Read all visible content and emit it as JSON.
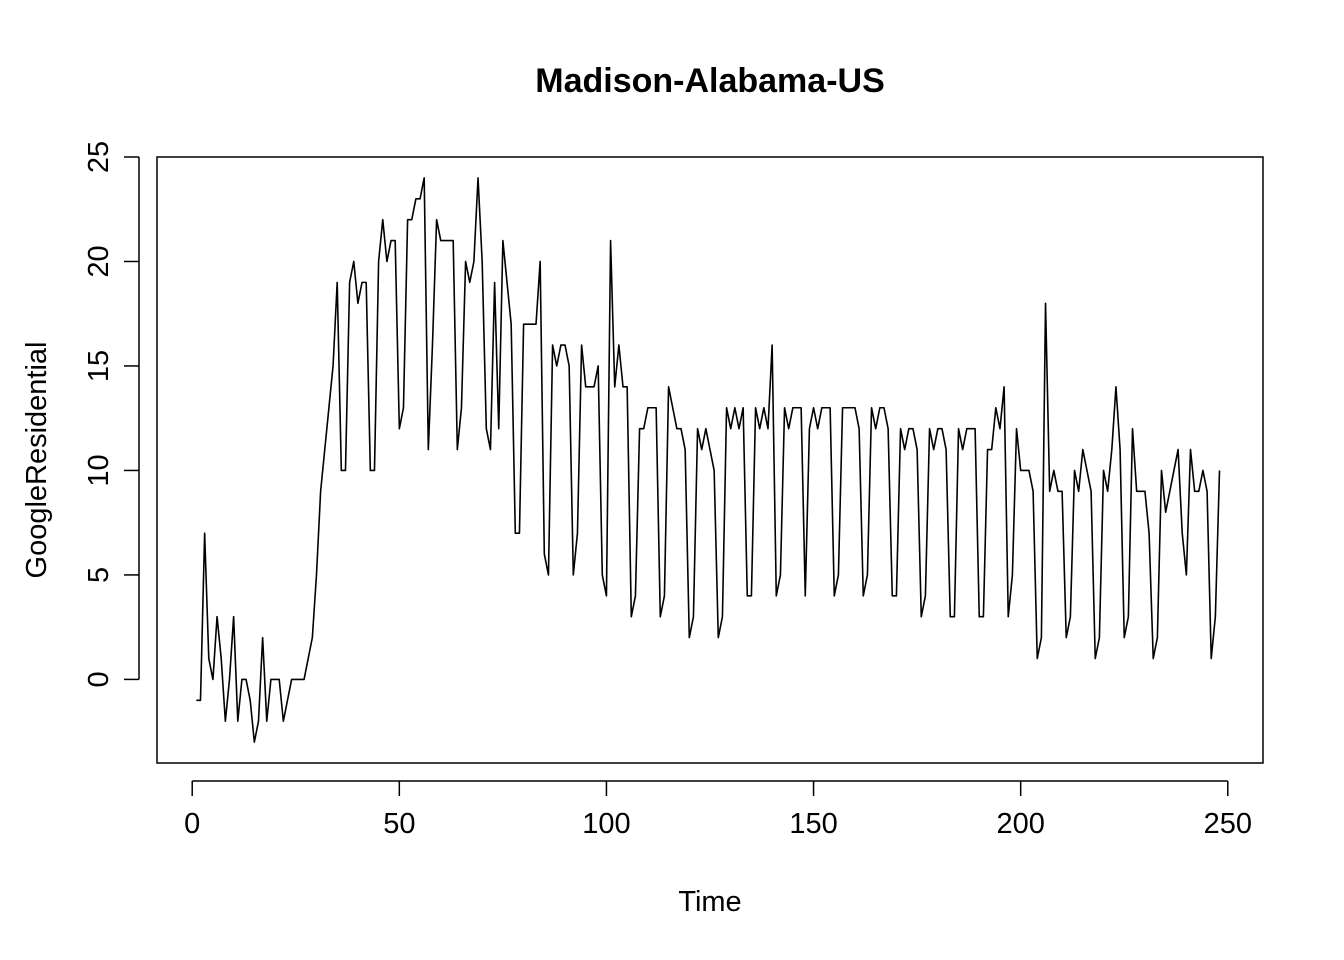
{
  "chart_data": {
    "type": "line",
    "title": "Madison-Alabama-US",
    "xlabel": "Time",
    "ylabel": "GoogleResidential",
    "xlim": [
      -8.5,
      258.5
    ],
    "ylim": [
      -4,
      25
    ],
    "xticks": [
      0,
      50,
      100,
      150,
      200,
      250
    ],
    "yticks": [
      0,
      5,
      10,
      15,
      20,
      25
    ],
    "grid": false,
    "line_color": "#000000",
    "series": [
      {
        "x": [
          1,
          2,
          3,
          4,
          5,
          6,
          7,
          8,
          9,
          10,
          11,
          12,
          13,
          14,
          15,
          16,
          17,
          18,
          19,
          20,
          21,
          22,
          23,
          24,
          25,
          26,
          27,
          28,
          29,
          30,
          31,
          32,
          33,
          34,
          35,
          36,
          37,
          38,
          39,
          40,
          41,
          42,
          43,
          44,
          45,
          46,
          47,
          48,
          49,
          50,
          51,
          52,
          53,
          54,
          55,
          56,
          57,
          58,
          59,
          60,
          61,
          62,
          63,
          64,
          65,
          66,
          67,
          68,
          69,
          70,
          71,
          72,
          73,
          74,
          75,
          76,
          77,
          78,
          79,
          80,
          81,
          82,
          83,
          84,
          85,
          86,
          87,
          88,
          89,
          90,
          91,
          92,
          93,
          94,
          95,
          96,
          97,
          98,
          99,
          100,
          101,
          102,
          103,
          104,
          105,
          106,
          107,
          108,
          109,
          110,
          111,
          112,
          113,
          114,
          115,
          116,
          117,
          118,
          119,
          120,
          121,
          122,
          123,
          124,
          125,
          126,
          127,
          128,
          129,
          130,
          131,
          132,
          133,
          134,
          135,
          136,
          137,
          138,
          139,
          140,
          141,
          142,
          143,
          144,
          145,
          146,
          147,
          148,
          149,
          150,
          151,
          152,
          153,
          154,
          155,
          156,
          157,
          158,
          159,
          160,
          161,
          162,
          163,
          164,
          165,
          166,
          167,
          168,
          169,
          170,
          171,
          172,
          173,
          174,
          175,
          176,
          177,
          178,
          179,
          180,
          181,
          182,
          183,
          184,
          185,
          186,
          187,
          188,
          189,
          190,
          191,
          192,
          193,
          194,
          195,
          196,
          197,
          198,
          199,
          200,
          201,
          202,
          203,
          204,
          205,
          206,
          207,
          208,
          209,
          210,
          211,
          212,
          213,
          214,
          215,
          216,
          217,
          218,
          219,
          220,
          221,
          222,
          223,
          224,
          225,
          226,
          227,
          228,
          229,
          230,
          231,
          232,
          233,
          234,
          235,
          236,
          237,
          238,
          239,
          240,
          241,
          242,
          243,
          244,
          245,
          246,
          247,
          248
        ],
        "y": [
          -1,
          -1,
          7,
          1,
          0,
          3,
          1,
          -2,
          0,
          3,
          -2,
          0,
          0,
          -1,
          -3,
          -2,
          2,
          -2,
          0,
          0,
          0,
          -2,
          -1,
          0,
          0,
          0,
          0,
          1,
          2,
          5,
          9,
          11,
          13,
          15,
          19,
          10,
          10,
          19,
          20,
          18,
          19,
          19,
          10,
          10,
          20,
          22,
          20,
          21,
          21,
          12,
          13,
          22,
          22,
          23,
          23,
          24,
          11,
          16,
          22,
          21,
          21,
          21,
          21,
          11,
          13,
          20,
          19,
          20,
          24,
          20,
          12,
          11,
          19,
          12,
          21,
          19,
          17,
          7,
          7,
          17,
          17,
          17,
          17,
          20,
          6,
          5,
          16,
          15,
          16,
          16,
          15,
          5,
          7,
          16,
          14,
          14,
          14,
          15,
          5,
          4,
          21,
          14,
          16,
          14,
          14,
          3,
          4,
          12,
          12,
          13,
          13,
          13,
          3,
          4,
          14,
          13,
          12,
          12,
          11,
          2,
          3,
          12,
          11,
          12,
          11,
          10,
          2,
          3,
          13,
          12,
          13,
          12,
          13,
          4,
          4,
          13,
          12,
          13,
          12,
          16,
          4,
          5,
          13,
          12,
          13,
          13,
          13,
          4,
          12,
          13,
          12,
          13,
          13,
          13,
          4,
          5,
          13,
          13,
          13,
          13,
          12,
          4,
          5,
          13,
          12,
          13,
          13,
          12,
          4,
          4,
          12,
          11,
          12,
          12,
          11,
          3,
          4,
          12,
          11,
          12,
          12,
          11,
          3,
          3,
          12,
          11,
          12,
          12,
          12,
          3,
          3,
          11,
          11,
          13,
          12,
          14,
          3,
          5,
          12,
          10,
          10,
          10,
          9,
          1,
          2,
          18,
          9,
          10,
          9,
          9,
          2,
          3,
          10,
          9,
          11,
          10,
          9,
          1,
          2,
          10,
          9,
          11,
          14,
          11,
          2,
          3,
          12,
          9,
          9,
          9,
          7,
          1,
          2,
          10,
          8,
          9,
          10,
          11,
          7,
          5,
          11,
          9,
          9,
          10,
          9,
          1,
          3,
          10
        ]
      }
    ]
  }
}
